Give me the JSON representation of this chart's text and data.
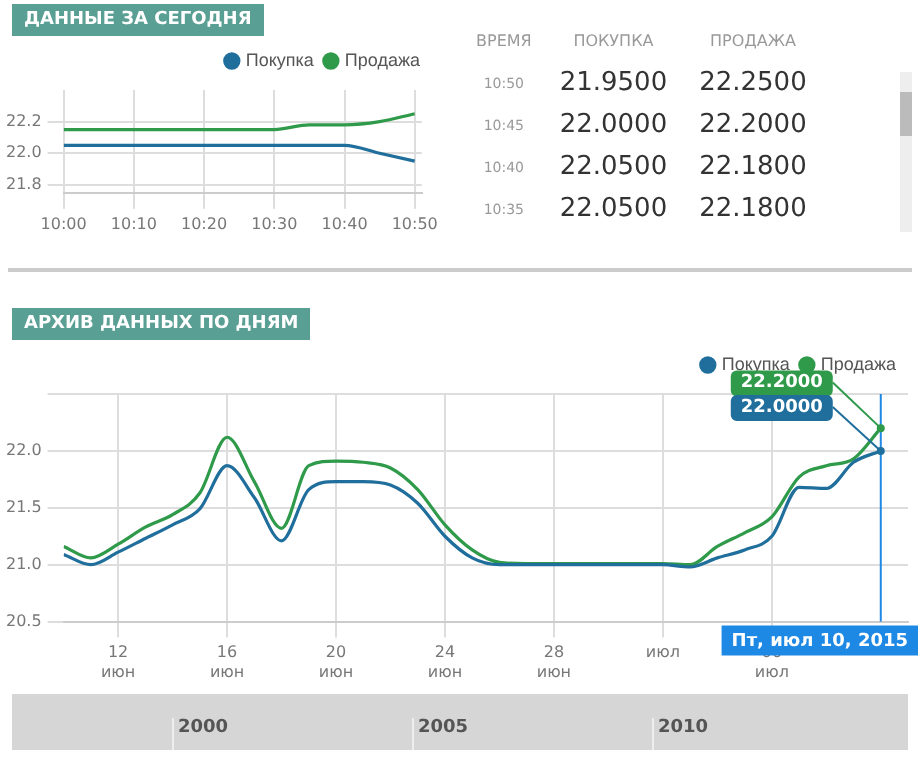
{
  "chart_data": [
    {
      "type": "line",
      "title": "ДАННЫЕ ЗА СЕГОДНЯ",
      "x": [
        10,
        10.5,
        10.5833,
        10.6667,
        10.75,
        10.8333
      ],
      "series": [
        {
          "name": "Покупка",
          "color": "#1f6e9c",
          "values": [
            22.05,
            22.05,
            22.05,
            22.05,
            22.0,
            21.95
          ]
        },
        {
          "name": "Продажа",
          "color": "#2e9a4a",
          "values": [
            22.15,
            22.15,
            22.18,
            22.18,
            22.2,
            22.25
          ]
        }
      ],
      "xlim": [
        10,
        10.85
      ],
      "xticks": [
        {
          "value": 10,
          "label": "10:00"
        },
        {
          "value": 10.1667,
          "label": "10:10"
        },
        {
          "value": 10.3333,
          "label": "10:20"
        },
        {
          "value": 10.5,
          "label": "10:30"
        },
        {
          "value": 10.6667,
          "label": "10:40"
        },
        {
          "value": 10.8333,
          "label": "10:50"
        }
      ],
      "ylim": [
        21.75,
        22.4
      ],
      "yticks": [
        21.8,
        {
          "value": 22,
          "label": "22.0"
        },
        22.2
      ],
      "grid": true,
      "legend": "top right",
      "marker": "none",
      "line_style": "solid"
    },
    {
      "type": "heatmap",
      "ylabel": "ВРЕМЯ",
      "categories": [
        "ПОКУПКА",
        "ПРОДАЖА"
      ],
      "y_categories": [
        "10:50",
        "10:45",
        "10:40",
        "10:35"
      ],
      "cells": [
        [
          21.95,
          22.25
        ],
        [
          22.0,
          22.2
        ],
        [
          22.05,
          22.18
        ],
        [
          22.05,
          22.18
        ]
      ],
      "cell_labels": [
        [
          "21.9500",
          "22.2500"
        ],
        [
          "22.0000",
          "22.2000"
        ],
        [
          "22.0500",
          "22.1800"
        ],
        [
          "22.0500",
          "22.1800"
        ]
      ]
    },
    {
      "type": "line",
      "title": "АРХИВ ДАННЫХ ПО ДНЯМ",
      "x": [
        "2015-06-10",
        "2015-06-11",
        "2015-06-12",
        "2015-06-13",
        "2015-06-14",
        "2015-06-15",
        "2015-06-16",
        "2015-06-17",
        "2015-06-18",
        "2015-06-19",
        "2015-06-20",
        "2015-06-21",
        "2015-06-22",
        "2015-06-23",
        "2015-06-24",
        "2015-06-25",
        "2015-06-26",
        "2015-06-27",
        "2015-06-28",
        "2015-06-29",
        "2015-06-30",
        "2015-07-01",
        "2015-07-02",
        "2015-07-03",
        "2015-07-04",
        "2015-07-05",
        "2015-07-06",
        "2015-07-07",
        "2015-07-08",
        "2015-07-09",
        "2015-07-10"
      ],
      "series": [
        {
          "name": "Покупка",
          "color": "#1f6e9c",
          "values": [
            21.09,
            21.0,
            21.11,
            21.23,
            21.35,
            21.49,
            21.87,
            21.59,
            21.21,
            21.66,
            21.73,
            21.73,
            21.7,
            21.54,
            21.25,
            21.06,
            21.0,
            21.0,
            21.0,
            21.0,
            21.0,
            21.0,
            21.0,
            20.98,
            21.06,
            21.13,
            21.25,
            21.68,
            21.67,
            21.9,
            22.0
          ]
        },
        {
          "name": "Продажа",
          "color": "#2e9a4a",
          "values": [
            21.16,
            21.06,
            21.18,
            21.33,
            21.44,
            21.63,
            22.12,
            21.73,
            21.32,
            21.87,
            21.91,
            21.9,
            21.85,
            21.66,
            21.35,
            21.13,
            21.02,
            21.01,
            21.01,
            21.01,
            21.01,
            21.01,
            21.01,
            21.0,
            21.16,
            21.28,
            21.42,
            21.77,
            21.87,
            21.93,
            22.2
          ]
        }
      ],
      "xlim": [
        "2015-06-10",
        "2015-07-11"
      ],
      "xticks": [
        {
          "value": "2015-06-12",
          "label": "12\nиюн"
        },
        {
          "value": "2015-06-16",
          "label": "16\nиюн"
        },
        {
          "value": "2015-06-20",
          "label": "20\nиюн"
        },
        {
          "value": "2015-06-24",
          "label": "24\nиюн"
        },
        {
          "value": "2015-06-28",
          "label": "28\nиюн"
        },
        {
          "value": "2015-07-02",
          "label": "июл"
        },
        {
          "value": "2015-07-06",
          "label": "06\nиюл"
        }
      ],
      "ylim": [
        20.5,
        22.5
      ],
      "yticks": [
        20.5,
        {
          "value": 21,
          "label": "21.0"
        },
        21.5,
        {
          "value": 22,
          "label": "22.0"
        },
        {
          "value": 22.5,
          "label": null
        }
      ],
      "grid": true,
      "legend": "top right",
      "marker": "none",
      "line_style": "solid",
      "ref_lines": [
        {
          "axis": "x",
          "value": "2015-07-10",
          "label": "Пт, июл 10, 2015",
          "color": "#1e88e5"
        }
      ],
      "annotations": [
        {
          "text": "22.2000",
          "x": "2015-07-10",
          "y": 22.2
        },
        {
          "text": "22.0000",
          "x": "2015-07-10",
          "y": 22.0
        },
        "2000",
        "2005",
        "2010"
      ]
    }
  ]
}
